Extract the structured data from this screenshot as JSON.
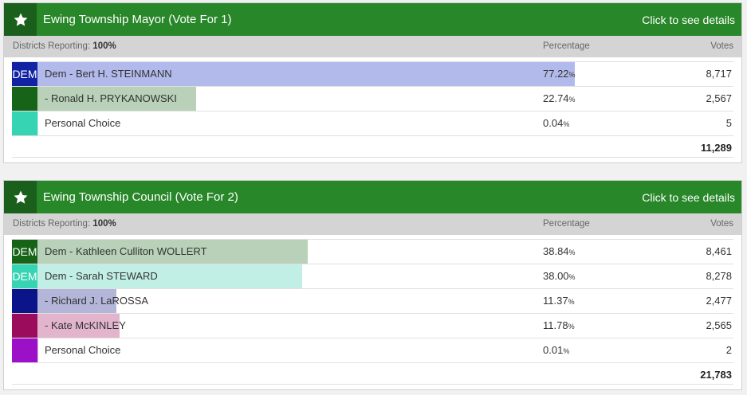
{
  "races": [
    {
      "title": "Ewing Township Mayor (Vote For 1)",
      "details_label": "Click to see details",
      "districts_label": "Districts Reporting:",
      "districts_value": "100%",
      "percentage_header": "Percentage",
      "votes_header": "Votes",
      "total": "11,289",
      "candidates": [
        {
          "party": "DEM",
          "name": "Dem - Bert H. STEINMANN",
          "pct": "77.22",
          "votes": "8,717",
          "share": 0.7722,
          "swatch_color": "#1123a3",
          "bar_color": "#b2baec"
        },
        {
          "party": "",
          "name": "- Ronald H. PRYKANOWSKI",
          "pct": "22.74",
          "votes": "2,567",
          "share": 0.2274,
          "swatch_color": "#176419",
          "bar_color": "#b8d1b8"
        },
        {
          "party": "",
          "name": "Personal Choice",
          "pct": "0.04",
          "votes": "5",
          "share": 0.0004,
          "swatch_color": "#36d4b2",
          "bar_color": "#c2efe5"
        }
      ]
    },
    {
      "title": "Ewing Township Council (Vote For 2)",
      "details_label": "Click to see details",
      "districts_label": "Districts Reporting:",
      "districts_value": "100%",
      "percentage_header": "Percentage",
      "votes_header": "Votes",
      "total": "21,783",
      "candidates": [
        {
          "party": "DEM",
          "name": "Dem - Kathleen Culliton WOLLERT",
          "pct": "38.84",
          "votes": "8,461",
          "share": 0.3884,
          "swatch_color": "#176419",
          "bar_color": "#b8d1b8"
        },
        {
          "party": "DEM",
          "name": "Dem - Sarah STEWARD",
          "pct": "38.00",
          "votes": "8,278",
          "share": 0.38,
          "swatch_color": "#36d4b2",
          "bar_color": "#c2efe5"
        },
        {
          "party": "",
          "name": "- Richard J. LaROSSA",
          "pct": "11.37",
          "votes": "2,477",
          "share": 0.1137,
          "swatch_color": "#0b1489",
          "bar_color": "#b3b6d9"
        },
        {
          "party": "",
          "name": "- Kate McKINLEY",
          "pct": "11.78",
          "votes": "2,565",
          "share": 0.1178,
          "swatch_color": "#9c0c5c",
          "bar_color": "#e3b5cd"
        },
        {
          "party": "",
          "name": "Personal Choice",
          "pct": "0.01",
          "votes": "2",
          "share": 0.0001,
          "swatch_color": "#9c10c8",
          "bar_color": "#e3bcef"
        }
      ]
    }
  ]
}
